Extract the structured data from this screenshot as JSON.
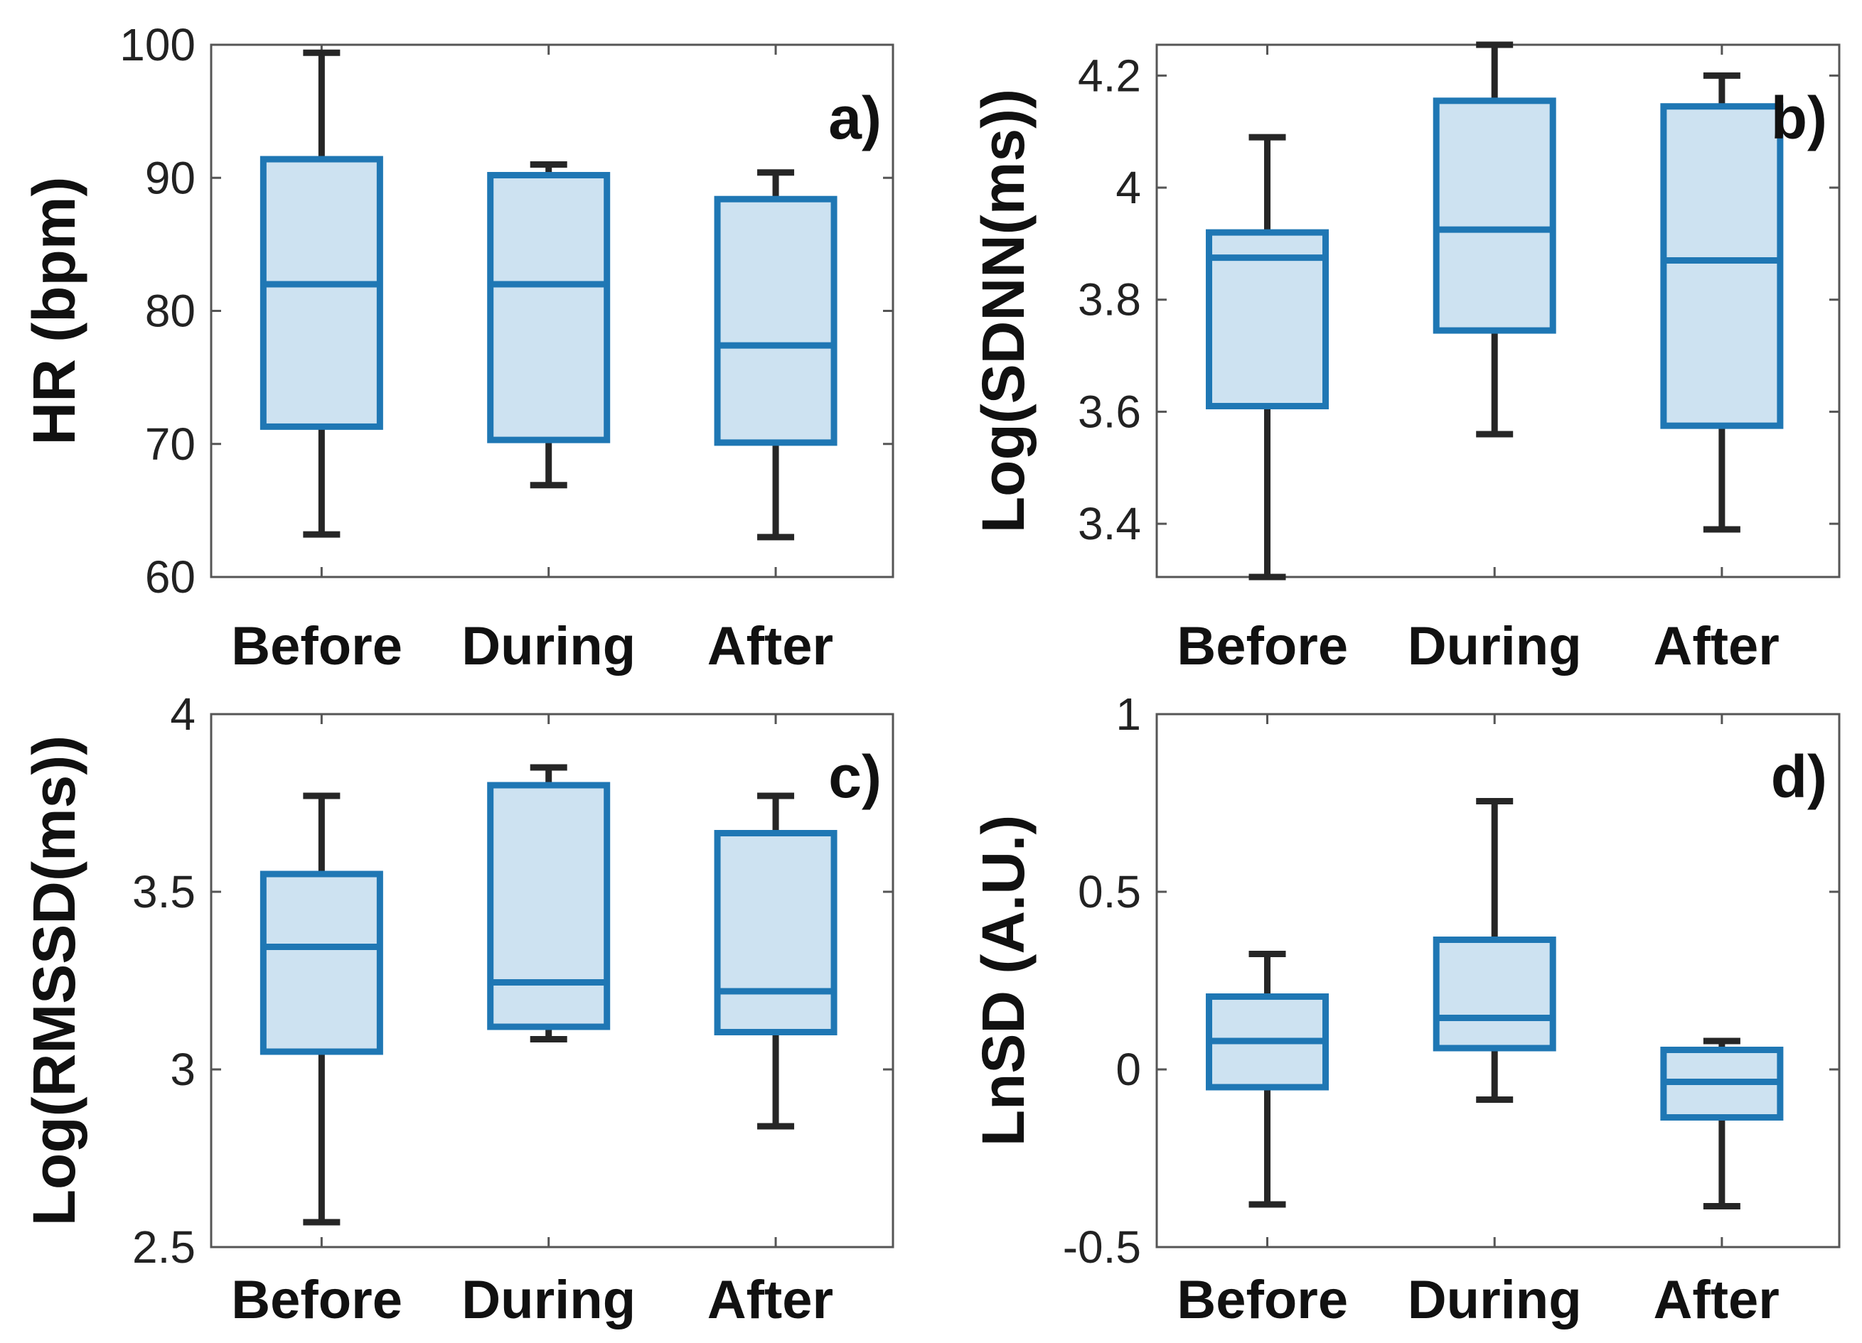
{
  "chart_data": [
    {
      "type": "box",
      "panel_label": "a)",
      "ylabel": "HR (bpm)",
      "ylim": [
        60,
        100
      ],
      "yticks": [
        60,
        70,
        80,
        90,
        100
      ],
      "ytick_labels": [
        "60",
        "70",
        "80",
        "90",
        "100"
      ],
      "categories": [
        "Before",
        "During",
        "After"
      ],
      "boxes": [
        {
          "category": "Before",
          "whisker_low": 63.2,
          "q1": 71.3,
          "median": 82.0,
          "q3": 91.4,
          "whisker_high": 99.4
        },
        {
          "category": "During",
          "whisker_low": 66.9,
          "q1": 70.3,
          "median": 82.0,
          "q3": 90.2,
          "whisker_high": 91.0
        },
        {
          "category": "After",
          "whisker_low": 63.0,
          "q1": 70.1,
          "median": 77.4,
          "q3": 88.4,
          "whisker_high": 90.4
        }
      ]
    },
    {
      "type": "box",
      "panel_label": "b)",
      "ylabel": "Log(SDNN(ms))",
      "ylim": [
        3.305,
        4.255
      ],
      "yticks": [
        3.4,
        3.6,
        3.8,
        4.0,
        4.2
      ],
      "ytick_labels": [
        "3.4",
        "3.6",
        "3.8",
        "4",
        "4.2"
      ],
      "categories": [
        "Before",
        "During",
        "After"
      ],
      "boxes": [
        {
          "category": "Before",
          "whisker_low": 3.305,
          "q1": 3.61,
          "median": 3.875,
          "q3": 3.92,
          "whisker_high": 4.09
        },
        {
          "category": "During",
          "whisker_low": 3.56,
          "q1": 3.745,
          "median": 3.925,
          "q3": 4.155,
          "whisker_high": 4.255
        },
        {
          "category": "After",
          "whisker_low": 3.39,
          "q1": 3.575,
          "median": 3.87,
          "q3": 4.145,
          "whisker_high": 4.2
        }
      ]
    },
    {
      "type": "box",
      "panel_label": "c)",
      "ylabel": "Log(RMSSD(ms))",
      "ylim": [
        2.5,
        4
      ],
      "yticks": [
        2.5,
        3,
        3.5,
        4
      ],
      "ytick_labels": [
        "2.5",
        "3",
        "3.5",
        "4"
      ],
      "categories": [
        "Before",
        "During",
        "After"
      ],
      "boxes": [
        {
          "category": "Before",
          "whisker_low": 2.57,
          "q1": 3.05,
          "median": 3.345,
          "q3": 3.55,
          "whisker_high": 3.77
        },
        {
          "category": "During",
          "whisker_low": 3.085,
          "q1": 3.12,
          "median": 3.245,
          "q3": 3.8,
          "whisker_high": 3.85
        },
        {
          "category": "After",
          "whisker_low": 2.84,
          "q1": 3.105,
          "median": 3.22,
          "q3": 3.665,
          "whisker_high": 3.77
        }
      ]
    },
    {
      "type": "box",
      "panel_label": "d)",
      "ylabel": "LnSD (A.U.)",
      "ylim": [
        -0.5,
        1
      ],
      "yticks": [
        -0.5,
        0,
        0.5,
        1
      ],
      "ytick_labels": [
        "-0.5",
        "0",
        "0.5",
        "1"
      ],
      "categories": [
        "Before",
        "During",
        "After"
      ],
      "boxes": [
        {
          "category": "Before",
          "whisker_low": -0.38,
          "q1": -0.05,
          "median": 0.08,
          "q3": 0.205,
          "whisker_high": 0.325
        },
        {
          "category": "During",
          "whisker_low": -0.085,
          "q1": 0.06,
          "median": 0.145,
          "q3": 0.365,
          "whisker_high": 0.755
        },
        {
          "category": "After",
          "whisker_low": -0.385,
          "q1": -0.135,
          "median": -0.035,
          "q3": 0.055,
          "whisker_high": 0.08
        }
      ]
    }
  ],
  "colors": {
    "box_edge": "#1f77b4",
    "box_fill": "#cde2f1",
    "whisker": "#262626",
    "axes": "#555555",
    "background": "#ffffff"
  }
}
